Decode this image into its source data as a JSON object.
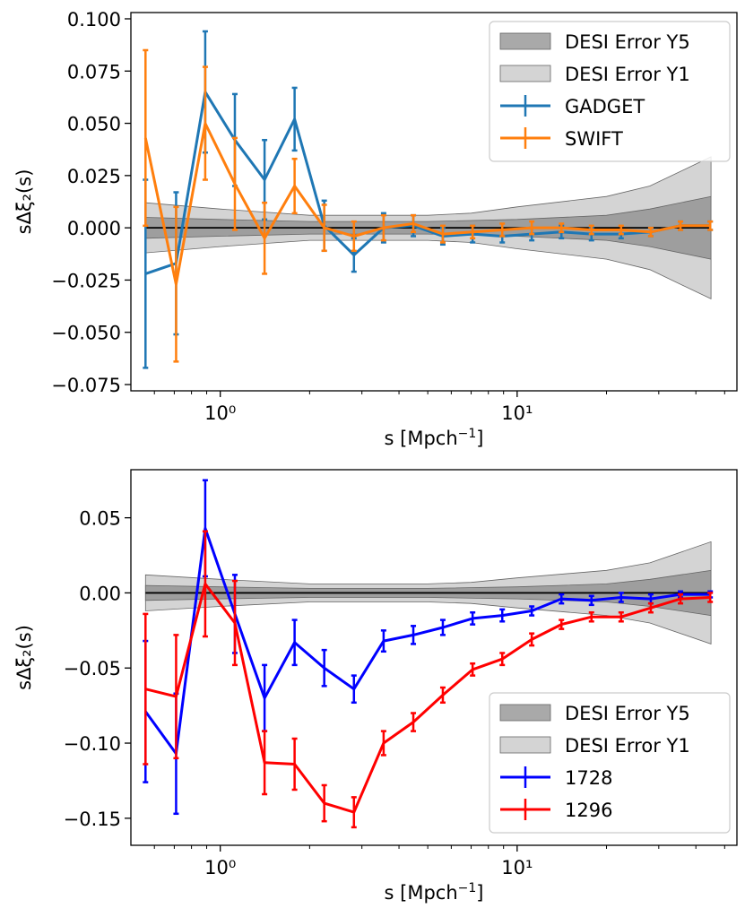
{
  "chart_data": [
    {
      "type": "line",
      "xscale": "log",
      "xlim": [
        0.5,
        55
      ],
      "ylim": [
        -0.078,
        0.103
      ],
      "xlabel": "s [Mpch$^{-1}$]",
      "ylabel": "sΔξ₂(s)",
      "xticks": [
        {
          "value": 1,
          "label": "10⁰"
        },
        {
          "value": 10,
          "label": "10¹"
        }
      ],
      "yticks": [
        {
          "value": 0.1,
          "label": "0.100"
        },
        {
          "value": 0.075,
          "label": "0.075"
        },
        {
          "value": 0.05,
          "label": "0.050"
        },
        {
          "value": 0.025,
          "label": "0.025"
        },
        {
          "value": 0.0,
          "label": "0.000"
        },
        {
          "value": -0.025,
          "label": "−0.025"
        },
        {
          "value": -0.05,
          "label": "−0.050"
        },
        {
          "value": -0.075,
          "label": "−0.075"
        }
      ],
      "legend_position": "top-right",
      "bands": [
        {
          "name": "DESI Error Y5",
          "color": "#8c8c8c",
          "x": [
            0.56,
            1.0,
            2.0,
            5.0,
            10.0,
            20.0,
            28.0,
            45.0
          ],
          "upper": [
            0.005,
            0.004,
            0.003,
            0.003,
            0.004,
            0.006,
            0.009,
            0.015
          ]
        },
        {
          "name": "DESI Error Y1",
          "color": "#cfcfcf",
          "x": [
            0.56,
            1.0,
            2.0,
            5.0,
            7.0,
            10.0,
            20.0,
            28.0,
            45.0
          ],
          "upper": [
            0.012,
            0.009,
            0.006,
            0.006,
            0.007,
            0.01,
            0.015,
            0.02,
            0.034
          ]
        }
      ],
      "x": [
        0.56,
        0.71,
        0.89,
        1.12,
        1.41,
        1.78,
        2.24,
        2.82,
        3.55,
        4.47,
        5.62,
        7.08,
        8.91,
        11.2,
        14.1,
        17.8,
        22.4,
        28.2,
        35.5,
        44.7
      ],
      "series": [
        {
          "name": "GADGET",
          "color": "#1f77b4",
          "values": [
            -0.022,
            -0.017,
            0.065,
            0.042,
            0.023,
            0.052,
            0.001,
            -0.013,
            0.0,
            0.001,
            -0.004,
            -0.003,
            -0.004,
            -0.003,
            -0.002,
            -0.003,
            -0.003,
            -0.002,
            0.001,
            0.001
          ],
          "errors": [
            0.045,
            0.034,
            0.029,
            0.022,
            0.019,
            0.015,
            0.012,
            0.008,
            0.007,
            0.005,
            0.004,
            0.004,
            0.003,
            0.003,
            0.003,
            0.003,
            0.002,
            0.002,
            0.002,
            0.002
          ]
        },
        {
          "name": "SWIFT",
          "color": "#ff7f0e",
          "values": [
            0.043,
            -0.027,
            0.05,
            0.021,
            -0.005,
            0.02,
            0.0,
            -0.004,
            0.0,
            0.002,
            -0.003,
            -0.002,
            -0.001,
            0.0,
            0.0,
            -0.001,
            -0.001,
            -0.002,
            0.001,
            0.001
          ],
          "errors": [
            0.042,
            0.037,
            0.027,
            0.022,
            0.017,
            0.013,
            0.011,
            0.007,
            0.006,
            0.004,
            0.004,
            0.003,
            0.003,
            0.003,
            0.002,
            0.002,
            0.002,
            0.002,
            0.002,
            0.002
          ]
        }
      ]
    },
    {
      "type": "line",
      "xscale": "log",
      "xlim": [
        0.5,
        55
      ],
      "ylim": [
        -0.168,
        0.082
      ],
      "xlabel": "s [Mpch$^{-1}$]",
      "ylabel": "sΔξ₂(s)",
      "xticks": [
        {
          "value": 1,
          "label": "10⁰"
        },
        {
          "value": 10,
          "label": "10¹"
        }
      ],
      "yticks": [
        {
          "value": 0.05,
          "label": "0.05"
        },
        {
          "value": 0.0,
          "label": "0.00"
        },
        {
          "value": -0.05,
          "label": "−0.05"
        },
        {
          "value": -0.1,
          "label": "−0.10"
        },
        {
          "value": -0.15,
          "label": "−0.15"
        }
      ],
      "legend_position": "bottom-right",
      "bands": [
        {
          "name": "DESI Error Y5",
          "color": "#8c8c8c",
          "x": [
            0.56,
            1.0,
            2.0,
            5.0,
            10.0,
            20.0,
            28.0,
            45.0
          ],
          "upper": [
            0.005,
            0.004,
            0.003,
            0.003,
            0.004,
            0.006,
            0.009,
            0.015
          ]
        },
        {
          "name": "DESI Error Y1",
          "color": "#cfcfcf",
          "x": [
            0.56,
            1.0,
            2.0,
            5.0,
            7.0,
            10.0,
            20.0,
            28.0,
            45.0
          ],
          "upper": [
            0.012,
            0.009,
            0.006,
            0.006,
            0.007,
            0.01,
            0.015,
            0.02,
            0.034
          ]
        }
      ],
      "x": [
        0.56,
        0.71,
        0.89,
        1.12,
        1.41,
        1.78,
        2.24,
        2.82,
        3.55,
        4.47,
        5.62,
        7.08,
        8.91,
        11.2,
        14.1,
        17.8,
        22.4,
        28.2,
        35.5,
        44.7
      ],
      "series": [
        {
          "name": "1728",
          "color": "#0000ff",
          "values": [
            -0.079,
            -0.107,
            0.043,
            -0.014,
            -0.07,
            -0.033,
            -0.05,
            -0.064,
            -0.032,
            -0.028,
            -0.023,
            -0.017,
            -0.015,
            -0.012,
            -0.004,
            -0.005,
            -0.003,
            -0.004,
            -0.001,
            -0.001
          ],
          "errors": [
            0.047,
            0.04,
            0.032,
            0.026,
            0.022,
            0.015,
            0.012,
            0.009,
            0.007,
            0.006,
            0.005,
            0.004,
            0.004,
            0.003,
            0.003,
            0.003,
            0.003,
            0.003,
            0.002,
            0.002
          ]
        },
        {
          "name": "1296",
          "color": "#ff0000",
          "values": [
            -0.064,
            -0.069,
            0.006,
            -0.02,
            -0.113,
            -0.114,
            -0.14,
            -0.146,
            -0.1,
            -0.086,
            -0.068,
            -0.051,
            -0.044,
            -0.031,
            -0.021,
            -0.016,
            -0.016,
            -0.01,
            -0.004,
            -0.003
          ],
          "errors": [
            0.05,
            0.041,
            0.035,
            0.028,
            0.021,
            0.017,
            0.012,
            0.01,
            0.008,
            0.006,
            0.005,
            0.004,
            0.004,
            0.004,
            0.003,
            0.003,
            0.003,
            0.003,
            0.003,
            0.003
          ]
        }
      ]
    }
  ]
}
